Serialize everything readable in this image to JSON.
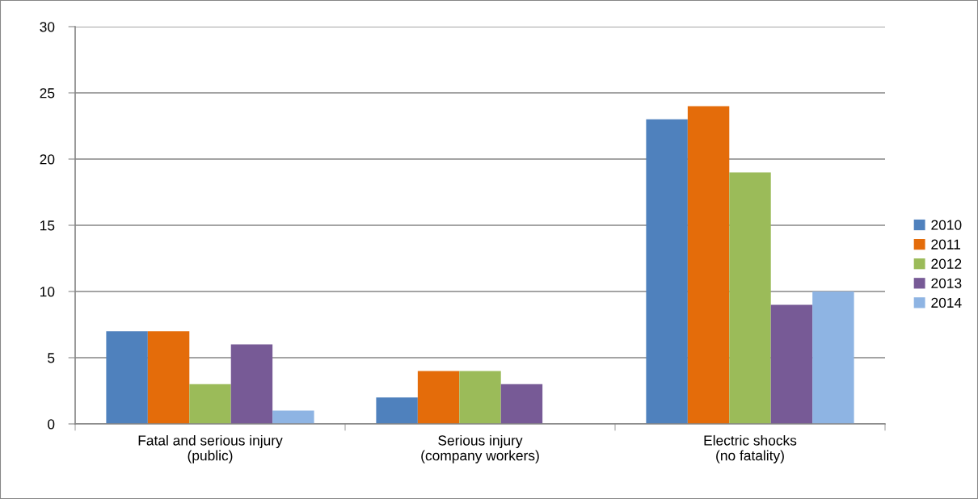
{
  "chart_data": {
    "type": "bar",
    "categories": [
      "Fatal and serious injury\n(public)",
      "Serious injury\n(company workers)",
      "Electric shocks\n(no fatality)"
    ],
    "series": [
      {
        "name": "2010",
        "color": "#4f81bd",
        "values": [
          7,
          2,
          23
        ]
      },
      {
        "name": "2011",
        "color": "#e46c0a",
        "values": [
          7,
          4,
          24
        ]
      },
      {
        "name": "2012",
        "color": "#9bbb59",
        "values": [
          3,
          4,
          19
        ]
      },
      {
        "name": "2013",
        "color": "#775a96",
        "values": [
          6,
          3,
          9
        ]
      },
      {
        "name": "2014",
        "color": "#8eb4e3",
        "values": [
          1,
          null,
          10
        ]
      }
    ],
    "ylim": [
      0,
      30
    ],
    "yticks": [
      0,
      5,
      10,
      15,
      20,
      25,
      30
    ],
    "grid": "y",
    "legend": "right"
  }
}
